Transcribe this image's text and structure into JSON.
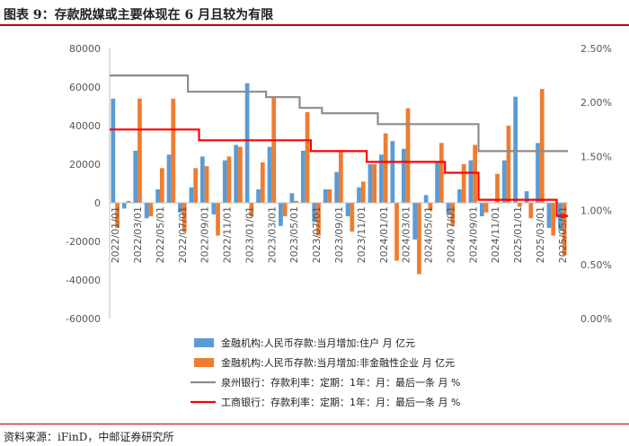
{
  "title": "图表 9：存款脱媒或主要体现在 6 月且较为有限",
  "source": "资料来源：iFinD，中邮证券研究所",
  "colors": {
    "blue": "#5b9bd5",
    "orange": "#ed7d31",
    "gray": "#8c8c8c",
    "red": "#ff0000",
    "rule": "#c00000"
  },
  "chart_data": {
    "type": "bar+line",
    "title": "存款脱媒或主要体现在 6 月且较为有限",
    "categories": [
      "2022/01",
      "2022/02",
      "2022/03",
      "2022/04",
      "2022/05",
      "2022/06",
      "2022/07",
      "2022/08",
      "2022/09",
      "2022/10",
      "2022/11",
      "2022/12",
      "2023/01",
      "2023/02",
      "2023/03",
      "2023/04",
      "2023/05",
      "2023/06",
      "2023/07",
      "2023/08",
      "2023/09",
      "2023/10",
      "2023/11",
      "2023/12",
      "2024/01",
      "2024/02",
      "2024/03",
      "2024/04",
      "2024/05",
      "2024/06",
      "2024/07",
      "2024/08",
      "2024/09",
      "2024/10",
      "2024/11",
      "2024/12",
      "2025/01",
      "2025/02",
      "2025/03",
      "2025/04",
      "2025/05"
    ],
    "x_tick_labels": [
      "2022/01/01",
      "2022/03/01",
      "2022/05/01",
      "2022/07/01",
      "2022/09/01",
      "2022/11/01",
      "2023/01/01",
      "2023/03/01",
      "2023/05/01",
      "2023/07/01",
      "2023/09/01",
      "2023/11/01",
      "2024/01/01",
      "2024/03/01",
      "2024/05/01",
      "2024/07/01",
      "2024/09/01",
      "2024/11/01",
      "2025/01/01",
      "2025/03/01",
      "2025/05/01"
    ],
    "ylim_left": [
      -60000,
      80000
    ],
    "left_ticks": [
      "80000",
      "60000",
      "40000",
      "20000",
      "0",
      "-20000",
      "-40000",
      "-60000"
    ],
    "ylim_right": [
      0,
      2.5
    ],
    "right_ticks": [
      "2.50%",
      "2.00%",
      "1.50%",
      "1.00%",
      "0.50%",
      "0.00%"
    ],
    "series": [
      {
        "name": "金融机构:人民币存款:当月增加:住户  月  亿元",
        "kind": "bar",
        "color": "#5b9bd5",
        "values": [
          54000,
          -3000,
          27000,
          -8000,
          7000,
          25000,
          -5000,
          8000,
          24000,
          -6000,
          22000,
          30000,
          62000,
          7000,
          29000,
          -12000,
          5000,
          27000,
          -10000,
          7000,
          16000,
          -7000,
          8000,
          20000,
          25000,
          32000,
          28000,
          -19000,
          4000,
          21000,
          -6000,
          7000,
          22000,
          -7000,
          0,
          22000,
          55000,
          6000,
          31000,
          -13000,
          -14000
        ]
      },
      {
        "name": "金融机构:人民币存款:当月增加:非金融性企业  月  亿元",
        "kind": "bar",
        "color": "#ed7d31",
        "values": [
          -13000,
          1000,
          54000,
          -7000,
          18000,
          54000,
          -15000,
          18000,
          19000,
          -17000,
          24000,
          29000,
          -7000,
          21000,
          55000,
          -7000,
          1000,
          47000,
          -17000,
          7000,
          27000,
          -15000,
          11000,
          20000,
          36000,
          -30000,
          49000,
          -37000,
          -4000,
          31000,
          -12000,
          20000,
          30000,
          -5000,
          15000,
          40000,
          -2000,
          -8000,
          59000,
          -17000,
          -27000
        ]
      },
      {
        "name": "泉州银行：存款利率：定期：1年：月：最后一条  月  %",
        "kind": "line",
        "color": "#8c8c8c",
        "values": [
          2.25,
          2.25,
          2.25,
          2.25,
          2.25,
          2.25,
          2.25,
          2.1,
          2.1,
          2.1,
          2.1,
          2.1,
          2.1,
          2.1,
          2.05,
          2.05,
          2.05,
          1.95,
          1.95,
          1.9,
          1.9,
          1.9,
          1.9,
          1.9,
          1.8,
          1.8,
          1.8,
          1.8,
          1.8,
          1.8,
          1.8,
          1.8,
          1.8,
          1.55,
          1.55,
          1.55,
          1.55,
          1.55,
          1.55,
          1.55,
          1.55
        ]
      },
      {
        "name": "工商银行：存款利率：定期：1年：月：最后一条  月  %",
        "kind": "line",
        "color": "#ff0000",
        "values": [
          1.75,
          1.75,
          1.75,
          1.75,
          1.75,
          1.75,
          1.75,
          1.75,
          1.65,
          1.65,
          1.65,
          1.65,
          1.65,
          1.65,
          1.65,
          1.65,
          1.65,
          1.65,
          1.55,
          1.55,
          1.55,
          1.55,
          1.55,
          1.45,
          1.45,
          1.45,
          1.45,
          1.45,
          1.45,
          1.45,
          1.35,
          1.35,
          1.35,
          1.1,
          1.1,
          1.1,
          1.1,
          1.1,
          1.1,
          1.1,
          0.95
        ]
      }
    ],
    "legend_position": "bottom-left"
  }
}
